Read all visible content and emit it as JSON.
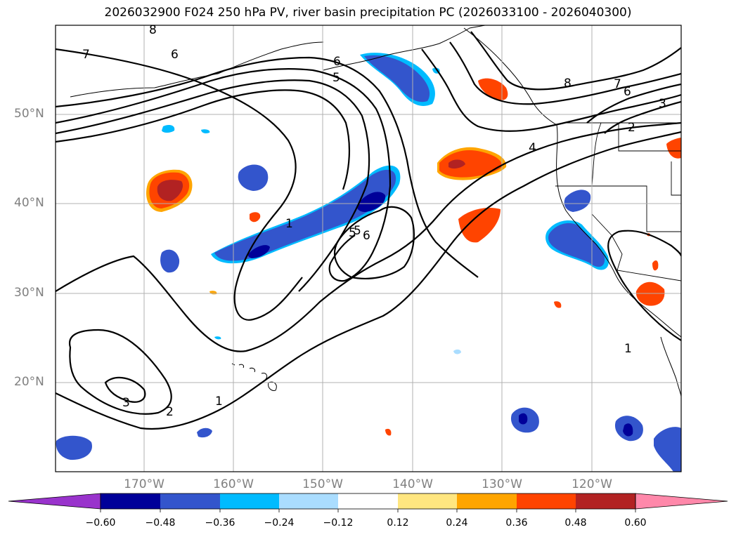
{
  "title": "2026032900 F024 250 hPa PV, river basin precipitation PC (2026033100 - 2026040300)",
  "lat_labels": [
    "50°N",
    "40°N",
    "30°N",
    "20°N"
  ],
  "lon_labels": [
    "170°W",
    "160°W",
    "150°W",
    "140°W",
    "130°W",
    "120°W"
  ],
  "contour_labels": [
    "8",
    "7",
    "6",
    "6",
    "5",
    "5",
    "8",
    "7",
    "6",
    "3",
    "2",
    "4",
    "1",
    "5",
    "6",
    "3",
    "2",
    "1",
    "1"
  ],
  "colorbar": {
    "ticks": [
      "−0.60",
      "−0.48",
      "−0.36",
      "−0.24",
      "−0.12",
      "0.12",
      "0.24",
      "0.36",
      "0.48",
      "0.60"
    ],
    "colors": [
      "#9933cc",
      "#000099",
      "#3355cc",
      "#00bbff",
      "#aaddff",
      "#ffffff",
      "#ffe680",
      "#ffa500",
      "#ff4400",
      "#b22222",
      "#ff88aa"
    ]
  },
  "palette": {
    "deep_negative": "#000099",
    "negative": "#3355cc",
    "light_negative": "#00bbff",
    "positive": "#ff4400",
    "strong_positive": "#b22222",
    "weak_positive": "#ffa500"
  }
}
